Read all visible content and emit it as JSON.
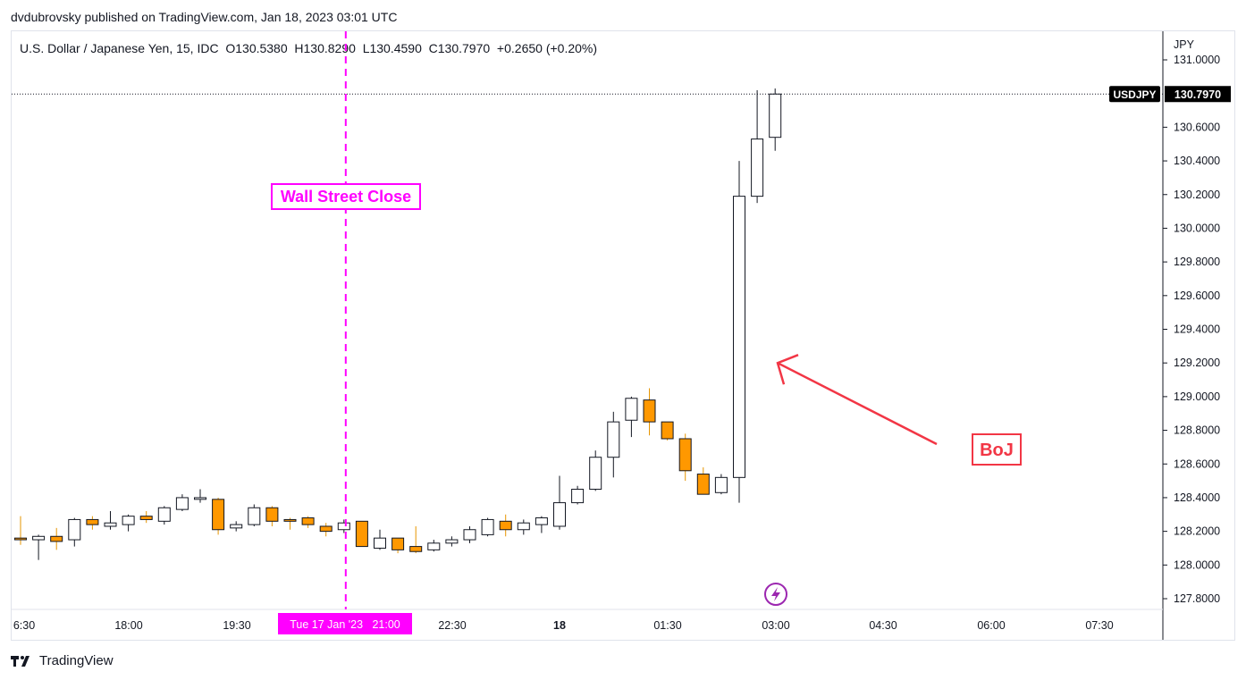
{
  "header": {
    "publisher_line": "dvdubrovsky published on TradingView.com, Jan 18, 2023 03:01 UTC",
    "ohlc_legend": "U.S. Dollar / Japanese Yen, 15, IDC  O130.5380  H130.8290  L130.4590  C130.7970  +0.2650 (+0.20%)"
  },
  "footer": {
    "brand": "TradingView",
    "logo_icon": "tradingview-logo-icon"
  },
  "colors": {
    "up_body": "#ffffff",
    "down_body": "#ff9800",
    "wick": "#131722",
    "annotation_magenta": "#ff00ff",
    "annotation_red": "#f23645",
    "price_tag_bg": "#000000"
  },
  "chart_data": {
    "type": "candlestick",
    "symbol": "USDJPY",
    "timeframe": "15",
    "currency_label": "JPY",
    "ylim": [
      127.7,
      131.05
    ],
    "y_ticks": [
      "131.0000",
      "130.6000",
      "130.4000",
      "130.2000",
      "130.0000",
      "129.8000",
      "129.6000",
      "129.4000",
      "129.2000",
      "129.0000",
      "128.8000",
      "128.6000",
      "128.4000",
      "128.2000",
      "128.0000",
      "127.8000"
    ],
    "x_ticks": [
      "6:30",
      "18:00",
      "19:30",
      "22:30",
      "18",
      "01:30",
      "03:00",
      "04:30",
      "06:00",
      "07:30"
    ],
    "crosshair_time_label": "Tue 17 Jan '23   21:00",
    "last_price": {
      "symbol_tag": "USDJPY",
      "value": "130.7970",
      "price": 130.797
    },
    "candles": [
      {
        "o": 128.16,
        "h": 128.29,
        "l": 128.12,
        "c": 128.15
      },
      {
        "o": 128.15,
        "h": 128.18,
        "l": 128.03,
        "c": 128.17
      },
      {
        "o": 128.17,
        "h": 128.22,
        "l": 128.09,
        "c": 128.14
      },
      {
        "o": 128.15,
        "h": 128.28,
        "l": 128.11,
        "c": 128.27
      },
      {
        "o": 128.27,
        "h": 128.29,
        "l": 128.21,
        "c": 128.24
      },
      {
        "o": 128.23,
        "h": 128.32,
        "l": 128.21,
        "c": 128.25
      },
      {
        "o": 128.24,
        "h": 128.3,
        "l": 128.2,
        "c": 128.29
      },
      {
        "o": 128.29,
        "h": 128.32,
        "l": 128.25,
        "c": 128.27
      },
      {
        "o": 128.26,
        "h": 128.35,
        "l": 128.24,
        "c": 128.34
      },
      {
        "o": 128.33,
        "h": 128.42,
        "l": 128.32,
        "c": 128.4
      },
      {
        "o": 128.39,
        "h": 128.45,
        "l": 128.37,
        "c": 128.4
      },
      {
        "o": 128.39,
        "h": 128.4,
        "l": 128.18,
        "c": 128.21
      },
      {
        "o": 128.22,
        "h": 128.26,
        "l": 128.2,
        "c": 128.24
      },
      {
        "o": 128.24,
        "h": 128.36,
        "l": 128.23,
        "c": 128.34
      },
      {
        "o": 128.34,
        "h": 128.35,
        "l": 128.23,
        "c": 128.26
      },
      {
        "o": 128.27,
        "h": 128.28,
        "l": 128.21,
        "c": 128.26
      },
      {
        "o": 128.28,
        "h": 128.29,
        "l": 128.22,
        "c": 128.24
      },
      {
        "o": 128.23,
        "h": 128.25,
        "l": 128.17,
        "c": 128.2
      },
      {
        "o": 128.21,
        "h": 128.27,
        "l": 128.19,
        "c": 128.25
      },
      {
        "o": 128.26,
        "h": 128.26,
        "l": 128.11,
        "c": 128.11
      },
      {
        "o": 128.1,
        "h": 128.21,
        "l": 128.09,
        "c": 128.16
      },
      {
        "o": 128.16,
        "h": 128.16,
        "l": 128.07,
        "c": 128.09
      },
      {
        "o": 128.11,
        "h": 128.23,
        "l": 128.07,
        "c": 128.08
      },
      {
        "o": 128.09,
        "h": 128.15,
        "l": 128.08,
        "c": 128.13
      },
      {
        "o": 128.13,
        "h": 128.17,
        "l": 128.11,
        "c": 128.15
      },
      {
        "o": 128.15,
        "h": 128.23,
        "l": 128.13,
        "c": 128.21
      },
      {
        "o": 128.18,
        "h": 128.28,
        "l": 128.17,
        "c": 128.27
      },
      {
        "o": 128.26,
        "h": 128.3,
        "l": 128.17,
        "c": 128.21
      },
      {
        "o": 128.21,
        "h": 128.27,
        "l": 128.18,
        "c": 128.25
      },
      {
        "o": 128.24,
        "h": 128.29,
        "l": 128.19,
        "c": 128.28
      },
      {
        "o": 128.23,
        "h": 128.53,
        "l": 128.21,
        "c": 128.37
      },
      {
        "o": 128.37,
        "h": 128.47,
        "l": 128.36,
        "c": 128.45
      },
      {
        "o": 128.45,
        "h": 128.68,
        "l": 128.44,
        "c": 128.64
      },
      {
        "o": 128.64,
        "h": 128.91,
        "l": 128.52,
        "c": 128.85
      },
      {
        "o": 128.86,
        "h": 129.0,
        "l": 128.76,
        "c": 128.99
      },
      {
        "o": 128.98,
        "h": 129.05,
        "l": 128.77,
        "c": 128.85
      },
      {
        "o": 128.85,
        "h": 128.85,
        "l": 128.74,
        "c": 128.75
      },
      {
        "o": 128.75,
        "h": 128.78,
        "l": 128.5,
        "c": 128.56
      },
      {
        "o": 128.54,
        "h": 128.58,
        "l": 128.42,
        "c": 128.42
      },
      {
        "o": 128.43,
        "h": 128.54,
        "l": 128.42,
        "c": 128.52
      },
      {
        "o": 128.52,
        "h": 130.4,
        "l": 128.37,
        "c": 130.19
      },
      {
        "o": 130.19,
        "h": 130.82,
        "l": 130.15,
        "c": 130.53
      },
      {
        "o": 130.54,
        "h": 130.83,
        "l": 130.46,
        "c": 130.797
      }
    ],
    "annotations": [
      {
        "type": "vertical_line",
        "label": "Wall Street Close",
        "candle_index": 18.5,
        "color": "#ff00ff",
        "style": "dashed"
      },
      {
        "type": "arrow",
        "label": "BoJ",
        "target_price": 129.2,
        "color": "#f23645"
      }
    ],
    "event_marker_icon": "lightning-icon",
    "grid": false,
    "legend": "top-left"
  }
}
